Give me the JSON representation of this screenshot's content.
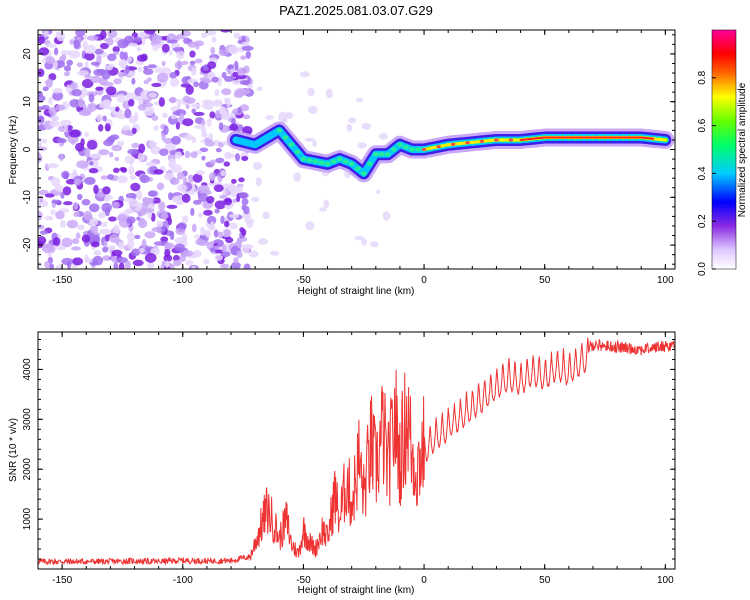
{
  "figure": {
    "title": "PAZ1.2025.081.03.07.G29"
  },
  "chart_data": [
    {
      "type": "heatmap",
      "title": "PAZ1.2025.081.03.07.G29",
      "xlabel": "Height of straight line (km)",
      "ylabel": "Frequency (Hz)",
      "xlim": [
        -160,
        104
      ],
      "ylim": [
        -25,
        25
      ],
      "xticks": [
        -150,
        -100,
        -50,
        0,
        50,
        100
      ],
      "yticks": [
        -20,
        -10,
        0,
        10,
        20
      ],
      "colorbar": {
        "label": "Normalized spectral amplitude",
        "range": [
          0.0,
          1.0
        ],
        "ticks": [
          0.0,
          0.2,
          0.4,
          0.6,
          0.8
        ],
        "tick_labels": [
          "0.0",
          "0.2",
          "0.4",
          "0.6",
          "0.8"
        ]
      },
      "ridge": {
        "description_points_x": [
          -78,
          -70,
          -60,
          -55,
          -50,
          -45,
          -40,
          -35,
          -30,
          -25,
          -20,
          -15,
          -10,
          -5,
          0,
          10,
          20,
          30,
          40,
          50,
          60,
          70,
          80,
          90,
          100
        ],
        "description_points_y": [
          2,
          1,
          4,
          1,
          -2,
          -2.5,
          -3,
          -2,
          -3,
          -5,
          -1,
          -1,
          1,
          0,
          0,
          1,
          1.5,
          2,
          2,
          2.5,
          2.5,
          2.5,
          2.5,
          2.5,
          2
        ]
      },
      "grid": false,
      "colormap": "white-purple-blue-cyan-green-yellow-red-magenta"
    },
    {
      "type": "line",
      "xlabel": "Height of straight line (km)",
      "ylabel": "SNR (10 * v/v)",
      "xlim": [
        -160,
        104
      ],
      "ylim": [
        0,
        4750
      ],
      "xticks": [
        -150,
        -100,
        -50,
        0,
        50,
        100
      ],
      "yticks": [
        1000,
        2000,
        3000,
        4000
      ],
      "color": "#ee3333",
      "grid": false,
      "series": [
        {
          "x": [
            -160,
            -150,
            -140,
            -130,
            -120,
            -110,
            -100,
            -90,
            -80,
            -72,
            -68,
            -65,
            -62,
            -60,
            -57,
            -55,
            -52,
            -50,
            -47,
            -45,
            -42,
            -40,
            -37,
            -35,
            -32,
            -30,
            -27,
            -25,
            -22,
            -20,
            -17,
            -15,
            -12,
            -10,
            -7,
            -5,
            -3,
            0,
            5,
            10,
            15,
            20,
            25,
            30,
            35,
            40,
            45,
            50,
            55,
            60,
            65,
            70,
            80,
            90,
            104
          ],
          "y": [
            150,
            150,
            150,
            150,
            160,
            150,
            170,
            160,
            170,
            250,
            800,
            1200,
            900,
            600,
            1000,
            500,
            300,
            800,
            500,
            400,
            800,
            600,
            1500,
            1000,
            1800,
            1300,
            2200,
            1500,
            2500,
            2000,
            2800,
            2000,
            3000,
            2200,
            3100,
            2300,
            2000,
            2500,
            2800,
            3000,
            3200,
            3400,
            3600,
            3800,
            4000,
            3900,
            4100,
            4000,
            4200,
            4100,
            4300,
            4500,
            4450,
            4400,
            4500
          ]
        }
      ]
    }
  ]
}
